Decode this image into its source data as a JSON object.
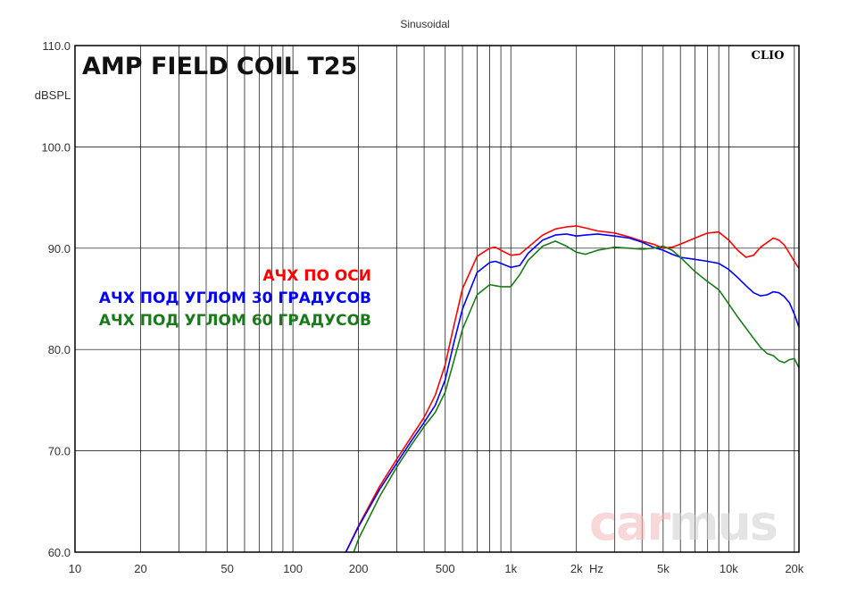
{
  "chart_data": {
    "type": "line",
    "title": "AMP FIELD COIL T25",
    "subtitle": "Sinusoidal",
    "brand": "CLIO",
    "watermark": [
      "car",
      "mus"
    ],
    "xlabel": "Hz",
    "ylabel": "dBSPL",
    "xscale": "log",
    "xlim": [
      10,
      21000
    ],
    "ylim": [
      60,
      110
    ],
    "grid": true,
    "legend_position": "center-left",
    "x_ticks": [
      {
        "value": 10,
        "label": "10"
      },
      {
        "value": 20,
        "label": "20"
      },
      {
        "value": 50,
        "label": "50"
      },
      {
        "value": 100,
        "label": "100"
      },
      {
        "value": 200,
        "label": "200"
      },
      {
        "value": 500,
        "label": "500"
      },
      {
        "value": 1000,
        "label": "1k"
      },
      {
        "value": 2000,
        "label": "2k"
      },
      {
        "value": 5000,
        "label": "5k"
      },
      {
        "value": 10000,
        "label": "10k"
      },
      {
        "value": 20000,
        "label": "20k"
      }
    ],
    "y_ticks": [
      {
        "value": 110,
        "label": "110.0"
      },
      {
        "value": 100,
        "label": "100.0"
      },
      {
        "value": 90,
        "label": "90.0"
      },
      {
        "value": 80,
        "label": "80.0"
      },
      {
        "value": 70,
        "label": "70.0"
      },
      {
        "value": 60,
        "label": "60.0"
      }
    ],
    "series": [
      {
        "name": "АЧХ ПО ОСИ",
        "color": "#ff0000",
        "points": [
          [
            175,
            60
          ],
          [
            200,
            62.6
          ],
          [
            250,
            66.5
          ],
          [
            300,
            69.2
          ],
          [
            350,
            71.4
          ],
          [
            400,
            73.3
          ],
          [
            450,
            75.5
          ],
          [
            500,
            78.5
          ],
          [
            550,
            82.5
          ],
          [
            600,
            86
          ],
          [
            700,
            89.2
          ],
          [
            800,
            90
          ],
          [
            850,
            90.1
          ],
          [
            900,
            89.8
          ],
          [
            1000,
            89.3
          ],
          [
            1100,
            89.4
          ],
          [
            1200,
            90.1
          ],
          [
            1400,
            91.3
          ],
          [
            1600,
            91.9
          ],
          [
            1800,
            92.1
          ],
          [
            2000,
            92.2
          ],
          [
            2200,
            92
          ],
          [
            2500,
            91.7
          ],
          [
            3000,
            91.5
          ],
          [
            3500,
            91.1
          ],
          [
            4000,
            90.7
          ],
          [
            4500,
            90.4
          ],
          [
            5000,
            90
          ],
          [
            5500,
            90.1
          ],
          [
            6000,
            90.4
          ],
          [
            7000,
            91
          ],
          [
            8000,
            91.5
          ],
          [
            9000,
            91.6
          ],
          [
            10000,
            90.8
          ],
          [
            11000,
            89.8
          ],
          [
            12000,
            89.1
          ],
          [
            13000,
            89.3
          ],
          [
            14000,
            90.1
          ],
          [
            16000,
            91
          ],
          [
            17000,
            90.8
          ],
          [
            18000,
            90.3
          ],
          [
            19000,
            89.5
          ],
          [
            20000,
            88.7
          ],
          [
            21000,
            88
          ]
        ]
      },
      {
        "name": "АЧХ ПОД УГЛОМ 30 ГРАДУСОВ",
        "color": "#0000ff",
        "points": [
          [
            175,
            60
          ],
          [
            200,
            62.5
          ],
          [
            250,
            66.2
          ],
          [
            300,
            68.8
          ],
          [
            350,
            71
          ],
          [
            400,
            72.8
          ],
          [
            450,
            74.5
          ],
          [
            500,
            77
          ],
          [
            550,
            80.8
          ],
          [
            600,
            84
          ],
          [
            700,
            87.6
          ],
          [
            800,
            88.6
          ],
          [
            850,
            88.7
          ],
          [
            900,
            88.5
          ],
          [
            1000,
            88.1
          ],
          [
            1100,
            88.3
          ],
          [
            1200,
            89.5
          ],
          [
            1400,
            90.8
          ],
          [
            1600,
            91.3
          ],
          [
            1800,
            91.4
          ],
          [
            2000,
            91.2
          ],
          [
            2200,
            91.3
          ],
          [
            2500,
            91.4
          ],
          [
            3000,
            91.2
          ],
          [
            3500,
            91
          ],
          [
            4000,
            90.6
          ],
          [
            4500,
            90.1
          ],
          [
            5000,
            89.8
          ],
          [
            5500,
            89.4
          ],
          [
            6000,
            89.1
          ],
          [
            7000,
            88.9
          ],
          [
            8000,
            88.7
          ],
          [
            9000,
            88.5
          ],
          [
            10000,
            87.9
          ],
          [
            11000,
            87.1
          ],
          [
            12000,
            86.3
          ],
          [
            13000,
            85.6
          ],
          [
            14000,
            85.3
          ],
          [
            15000,
            85.4
          ],
          [
            16000,
            85.7
          ],
          [
            17000,
            85.6
          ],
          [
            18000,
            85.2
          ],
          [
            19000,
            84.6
          ],
          [
            20000,
            83.5
          ],
          [
            21000,
            82.2
          ]
        ]
      },
      {
        "name": "АЧХ ПОД УГЛОМ 60 ГРАДУСОВ",
        "color": "#1a7a1a",
        "points": [
          [
            190,
            60
          ],
          [
            200,
            61.3
          ],
          [
            250,
            65.5
          ],
          [
            300,
            68.4
          ],
          [
            350,
            70.6
          ],
          [
            400,
            72.4
          ],
          [
            450,
            73.8
          ],
          [
            500,
            75.8
          ],
          [
            550,
            79
          ],
          [
            600,
            82
          ],
          [
            700,
            85.4
          ],
          [
            800,
            86.4
          ],
          [
            850,
            86.3
          ],
          [
            900,
            86.2
          ],
          [
            1000,
            86.2
          ],
          [
            1100,
            87.4
          ],
          [
            1200,
            88.8
          ],
          [
            1400,
            90.2
          ],
          [
            1600,
            90.7
          ],
          [
            1800,
            90.2
          ],
          [
            2000,
            89.6
          ],
          [
            2200,
            89.4
          ],
          [
            2500,
            89.8
          ],
          [
            3000,
            90.1
          ],
          [
            3500,
            90
          ],
          [
            4000,
            89.9
          ],
          [
            4500,
            90
          ],
          [
            5000,
            90.2
          ],
          [
            5500,
            89.8
          ],
          [
            6000,
            89.1
          ],
          [
            7000,
            87.7
          ],
          [
            8000,
            86.7
          ],
          [
            9000,
            85.9
          ],
          [
            10000,
            84.5
          ],
          [
            11000,
            83.2
          ],
          [
            12000,
            82.1
          ],
          [
            13000,
            81.1
          ],
          [
            14000,
            80.2
          ],
          [
            15000,
            79.6
          ],
          [
            16000,
            79.4
          ],
          [
            17000,
            78.9
          ],
          [
            18000,
            78.7
          ],
          [
            19000,
            79
          ],
          [
            20000,
            79.1
          ],
          [
            21000,
            78.2
          ]
        ]
      }
    ]
  }
}
